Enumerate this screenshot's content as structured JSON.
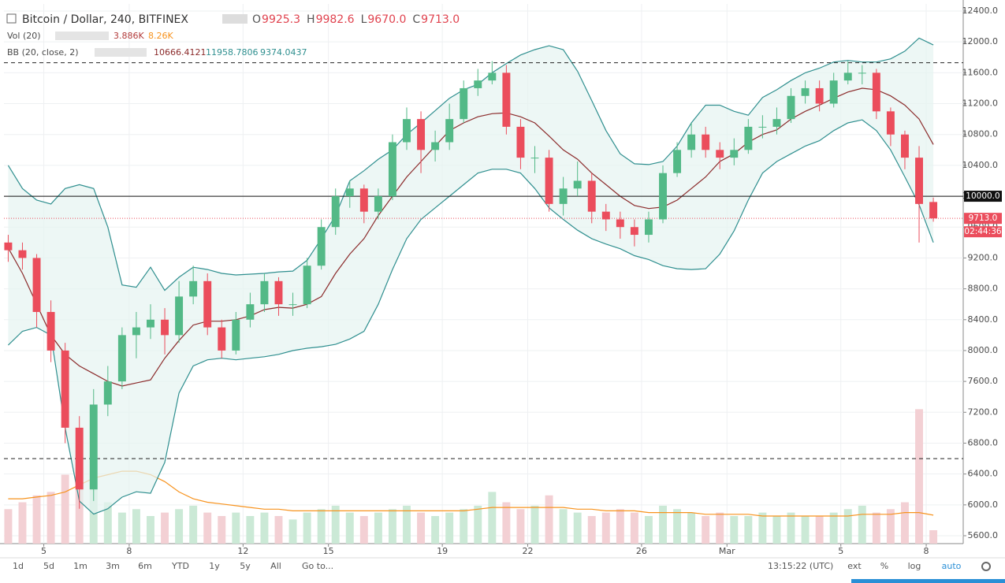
{
  "header": {
    "title": "Bitcoin / Dollar, 240, BITFINEX",
    "ohlc": [
      {
        "key": "O",
        "value": "9925.3"
      },
      {
        "key": "H",
        "value": "9982.6"
      },
      {
        "key": "L",
        "value": "9670.0"
      },
      {
        "key": "C",
        "value": "9713.0"
      }
    ],
    "vol": {
      "name": "Vol (20)",
      "value": "3.886K",
      "ma": "8.26K"
    },
    "bb": {
      "name": "BB (20, close, 2)",
      "basis": "10666.4121",
      "upper": "11958.7806",
      "lower": "9374.0437"
    }
  },
  "chart_data": {
    "type": "candlestick",
    "xlim": [
      -0.4,
      33.3
    ],
    "xticks": [
      {
        "value": 1,
        "label": "5"
      },
      {
        "value": 4,
        "label": "8"
      },
      {
        "value": 8,
        "label": "12"
      },
      {
        "value": 11,
        "label": "15"
      },
      {
        "value": 15,
        "label": "19"
      },
      {
        "value": 18,
        "label": "22"
      },
      {
        "value": 22,
        "label": "26"
      },
      {
        "value": 25,
        "label": "Mar"
      },
      {
        "value": 29,
        "label": "5"
      },
      {
        "value": 32,
        "label": "8"
      }
    ],
    "ylim": [
      5498,
      12492
    ],
    "yticks": [
      {
        "value": 5600,
        "label": "5600.0"
      },
      {
        "value": 6000,
        "label": "6000.0"
      },
      {
        "value": 6400,
        "label": "6400.0"
      },
      {
        "value": 6800,
        "label": "6800.0"
      },
      {
        "value": 7200,
        "label": "7200.0"
      },
      {
        "value": 7600,
        "label": "7600.0"
      },
      {
        "value": 8000,
        "label": "8000.0"
      },
      {
        "value": 8400,
        "label": "8400.0"
      },
      {
        "value": 8800,
        "label": "8800.0"
      },
      {
        "value": 9200,
        "label": "9200.0"
      },
      {
        "value": 9600,
        "label": "9600.0"
      },
      {
        "value": 10000,
        "label": "10000.0"
      },
      {
        "value": 10400,
        "label": "10400.0"
      },
      {
        "value": 10800,
        "label": "10800.0"
      },
      {
        "value": 11200,
        "label": "11200.0"
      },
      {
        "value": 11600,
        "label": "11600.0"
      },
      {
        "value": 12000,
        "label": "12000.0"
      },
      {
        "value": 12400,
        "label": "12400.0"
      }
    ],
    "grid": true,
    "up_color": "#53b987",
    "down_color": "#eb4d5c",
    "x": [
      -0.25,
      0.25,
      0.75,
      1.25,
      1.75,
      2.25,
      2.75,
      3.25,
      3.75,
      4.25,
      4.75,
      5.25,
      5.75,
      6.25,
      6.75,
      7.25,
      7.75,
      8.25,
      8.75,
      9.25,
      9.75,
      10.25,
      10.75,
      11.25,
      11.75,
      12.25,
      12.75,
      13.25,
      13.75,
      14.25,
      14.75,
      15.25,
      15.75,
      16.25,
      16.75,
      17.25,
      17.75,
      18.25,
      18.75,
      19.25,
      19.75,
      20.25,
      20.75,
      21.25,
      21.75,
      22.25,
      22.75,
      23.25,
      23.75,
      24.25,
      24.75,
      25.25,
      25.75,
      26.25,
      26.75,
      27.25,
      27.75,
      28.25,
      28.75,
      29.25,
      29.75,
      30.25,
      30.75,
      31.25,
      31.75,
      32.25
    ],
    "open": [
      9400,
      9300,
      9200,
      8500,
      8000,
      7000,
      6200,
      7300,
      7600,
      8200,
      8300,
      8400,
      8200,
      8700,
      8900,
      8300,
      8000,
      8400,
      8600,
      8900,
      8600,
      8600,
      9100,
      9600,
      10000,
      10100,
      9800,
      10000,
      10700,
      11000,
      10600,
      10700,
      11000,
      11400,
      11500,
      11600,
      10900,
      10500,
      10500,
      9900,
      10100,
      10200,
      9800,
      9700,
      9600,
      9500,
      9700,
      10300,
      10600,
      10800,
      10600,
      10500,
      10600,
      10900,
      10900,
      11000,
      11300,
      11400,
      11200,
      11500,
      11600,
      11600,
      11100,
      10800,
      10500,
      9925.3
    ],
    "high": [
      9500,
      9400,
      9250,
      8650,
      8100,
      7150,
      7500,
      7800,
      8300,
      8500,
      8600,
      8550,
      8900,
      9100,
      9000,
      8400,
      8500,
      8750,
      9000,
      8950,
      8750,
      9200,
      9700,
      10100,
      10200,
      10150,
      10100,
      10800,
      11150,
      11100,
      10850,
      11200,
      11500,
      11650,
      11750,
      11700,
      11000,
      10650,
      10600,
      10250,
      10450,
      10300,
      9900,
      9800,
      9700,
      9800,
      10400,
      10700,
      10950,
      10900,
      10700,
      10750,
      11000,
      11050,
      11150,
      11400,
      11500,
      11500,
      11600,
      11750,
      11700,
      11650,
      11150,
      10850,
      10650,
      9982.6
    ],
    "low": [
      9150,
      9050,
      8300,
      7850,
      6800,
      5950,
      6050,
      7150,
      7500,
      7900,
      8150,
      7950,
      8100,
      8600,
      8200,
      7900,
      7950,
      8300,
      8500,
      8450,
      8450,
      8550,
      9050,
      9500,
      9850,
      9650,
      9700,
      9950,
      10600,
      10300,
      10450,
      10600,
      10950,
      11300,
      11450,
      10800,
      10350,
      10300,
      9800,
      9750,
      10000,
      9650,
      9550,
      9450,
      9350,
      9400,
      9650,
      10250,
      10500,
      10500,
      10350,
      10400,
      10550,
      10750,
      10800,
      10950,
      11200,
      11100,
      11150,
      11450,
      11450,
      11000,
      10650,
      10350,
      9400,
      9670
    ],
    "close": [
      9300,
      9200,
      8500,
      8000,
      7000,
      6200,
      7300,
      7600,
      8200,
      8300,
      8400,
      8200,
      8700,
      8900,
      8300,
      8000,
      8400,
      8600,
      8900,
      8600,
      8600,
      9100,
      9600,
      10000,
      10100,
      9800,
      10000,
      10700,
      11000,
      10600,
      10700,
      11000,
      11400,
      11500,
      11600,
      10900,
      10500,
      10500,
      9900,
      10100,
      10200,
      9800,
      9700,
      9600,
      9500,
      9700,
      10300,
      10600,
      10800,
      10600,
      10500,
      10600,
      10900,
      10900,
      11000,
      11300,
      11400,
      11200,
      11500,
      11600,
      11600,
      11100,
      10800,
      10500,
      9900,
      9713
    ],
    "bb": {
      "upper_color": "#2f8f8f",
      "basis_color": "#8b2b2b",
      "fill": "#e6f3f1",
      "upper": [
        10400,
        10100,
        9950,
        9900,
        10100,
        10150,
        10100,
        9600,
        8850,
        8820,
        9080,
        8780,
        8950,
        9080,
        9050,
        9000,
        8980,
        8990,
        9000,
        9020,
        9030,
        9170,
        9450,
        9750,
        10200,
        10330,
        10480,
        10600,
        10800,
        10950,
        11110,
        11270,
        11380,
        11450,
        11600,
        11720,
        11830,
        11900,
        11950,
        11900,
        11620,
        11240,
        10850,
        10550,
        10420,
        10410,
        10450,
        10650,
        10950,
        11180,
        11180,
        11100,
        11050,
        11280,
        11380,
        11500,
        11600,
        11660,
        11740,
        11760,
        11740,
        11740,
        11780,
        11880,
        12050,
        11960
      ],
      "basis": [
        9330,
        9000,
        8600,
        8200,
        7950,
        7800,
        7700,
        7600,
        7540,
        7580,
        7620,
        7900,
        8130,
        8330,
        8380,
        8380,
        8400,
        8450,
        8530,
        8560,
        8550,
        8600,
        8700,
        9000,
        9250,
        9450,
        9750,
        10000,
        10250,
        10450,
        10650,
        10850,
        10950,
        11030,
        11070,
        11080,
        11030,
        10950,
        10780,
        10600,
        10480,
        10300,
        10150,
        10000,
        9880,
        9840,
        9860,
        9950,
        10100,
        10250,
        10450,
        10550,
        10700,
        10800,
        10860,
        11000,
        11100,
        11180,
        11270,
        11350,
        11400,
        11380,
        11300,
        11180,
        11000,
        10670
      ],
      "lower": [
        8070,
        8250,
        8300,
        8200,
        7000,
        6050,
        5880,
        5950,
        6100,
        6170,
        6150,
        6550,
        7450,
        7800,
        7880,
        7900,
        7880,
        7900,
        7920,
        7950,
        8000,
        8030,
        8050,
        8080,
        8150,
        8250,
        8600,
        9050,
        9450,
        9700,
        9850,
        10000,
        10150,
        10300,
        10350,
        10350,
        10300,
        10100,
        9850,
        9700,
        9560,
        9450,
        9380,
        9320,
        9230,
        9180,
        9100,
        9060,
        9050,
        9060,
        9250,
        9550,
        9950,
        10300,
        10450,
        10550,
        10650,
        10720,
        10850,
        10950,
        10990,
        10850,
        10600,
        10250,
        9890,
        9400
      ]
    },
    "volume": {
      "vlim": [
        0,
        80
      ],
      "ma_color": "#f7931e",
      "up_color": "#cbe9d6",
      "down_color": "#f3d0d4",
      "values": [
        10,
        12,
        14,
        15,
        20,
        22,
        18,
        12,
        9,
        10,
        8,
        9,
        10,
        11,
        9,
        8,
        9,
        8,
        9,
        8,
        7,
        9,
        10,
        11,
        9,
        8,
        9,
        10,
        11,
        9,
        8,
        9,
        10,
        11,
        15,
        12,
        10,
        11,
        14,
        10,
        9,
        8,
        9,
        10,
        9,
        8,
        11,
        10,
        9,
        8,
        9,
        8,
        8,
        9,
        8,
        9,
        8,
        8,
        9,
        10,
        11,
        9,
        10,
        12,
        39,
        3.886
      ],
      "ma": [
        13,
        13,
        13.5,
        14,
        15,
        17,
        19,
        20,
        21,
        21,
        20,
        18,
        15,
        13,
        12,
        11.5,
        11,
        10.5,
        10,
        10,
        9.5,
        9.5,
        9.5,
        9.5,
        9.5,
        9.5,
        9.5,
        9.5,
        9.5,
        9.5,
        9.5,
        9.5,
        9.5,
        10,
        10.5,
        10.5,
        10.5,
        10.5,
        10.5,
        10.5,
        10,
        10,
        9.5,
        9.5,
        9.5,
        9,
        9,
        9,
        9,
        8.5,
        8.5,
        8.5,
        8.5,
        8,
        8,
        8,
        8,
        8,
        8,
        8,
        8.5,
        8.5,
        8.5,
        9,
        9,
        8.26
      ]
    },
    "levels": {
      "dashed": [
        11730,
        6600
      ],
      "round": {
        "value": 10000,
        "label": "10000.0"
      },
      "last": {
        "value": 9713,
        "label": "9713.0"
      },
      "countdown": "02:44:36"
    }
  },
  "toolbar": {
    "ranges": [
      "1d",
      "5d",
      "1m",
      "3m",
      "6m",
      "YTD",
      "1y",
      "5y",
      "All"
    ],
    "goto": "Go to...",
    "time": "13:15:22 (UTC)",
    "ext": "ext",
    "percent": "%",
    "log": "log",
    "auto": "auto"
  }
}
